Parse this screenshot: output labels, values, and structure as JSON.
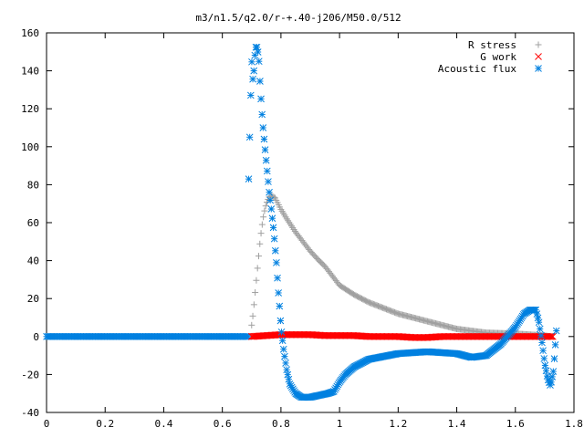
{
  "chart_data": {
    "type": "scatter",
    "title": "m3/n1.5/q2.0/r-+.40-j206/M50.0/512",
    "xlabel": "",
    "ylabel": "",
    "xlim": [
      0,
      1.8
    ],
    "ylim": [
      -40,
      160
    ],
    "x_ticks": [
      "0",
      "0.2",
      "0.4",
      "0.6",
      "0.8",
      "1",
      "1.2",
      "1.4",
      "1.6",
      "1.8"
    ],
    "y_ticks": [
      "-40",
      "-20",
      "0",
      "20",
      "40",
      "60",
      "80",
      "100",
      "120",
      "140",
      "160"
    ],
    "legend_position": "top-right",
    "grid": false,
    "series": [
      {
        "name": "R stress",
        "marker": "plus",
        "color": "#a0a0a0",
        "x": [
          0.7,
          0.705,
          0.71,
          0.715,
          0.72,
          0.725,
          0.73,
          0.735,
          0.74,
          0.745,
          0.75,
          0.755,
          0.76,
          0.765,
          0.77,
          0.775,
          0.78,
          0.79,
          0.8,
          0.82,
          0.85,
          0.88,
          0.9,
          0.93,
          0.95,
          0.97,
          1.0,
          1.05,
          1.1,
          1.15,
          1.2,
          1.3,
          1.4,
          1.5,
          1.6,
          1.65,
          1.7,
          1.72
        ],
        "y": [
          6,
          12,
          20,
          28,
          36,
          44,
          52,
          58,
          63,
          67,
          70,
          72,
          73.5,
          74,
          74,
          73.5,
          73,
          70,
          67,
          62,
          55,
          49,
          45,
          40,
          37,
          33,
          27,
          22,
          18,
          15,
          12,
          8,
          4,
          2,
          1.5,
          1,
          0.5,
          0
        ]
      },
      {
        "name": "G work",
        "marker": "cross",
        "color": "#ff0000",
        "x": [
          0.7,
          0.75,
          0.8,
          0.85,
          0.9,
          0.95,
          1.0,
          1.05,
          1.1,
          1.15,
          1.2,
          1.25,
          1.3,
          1.35,
          1.4,
          1.45,
          1.5,
          1.55,
          1.6,
          1.65,
          1.7,
          1.73
        ],
        "y": [
          0,
          0.5,
          1,
          1,
          1,
          0.5,
          0.5,
          0.5,
          0,
          0,
          0,
          -0.5,
          -0.5,
          0,
          0,
          0,
          0,
          0,
          0,
          0,
          0,
          0
        ]
      },
      {
        "name": "Acoustic flux",
        "marker": "star",
        "color": "#0080e0",
        "x": [
          0.69,
          0.7,
          0.705,
          0.71,
          0.715,
          0.72,
          0.725,
          0.73,
          0.735,
          0.74,
          0.745,
          0.75,
          0.755,
          0.76,
          0.765,
          0.77,
          0.775,
          0.78,
          0.785,
          0.79,
          0.795,
          0.8,
          0.81,
          0.82,
          0.83,
          0.85,
          0.87,
          0.9,
          0.93,
          0.96,
          0.98,
          1.0,
          1.02,
          1.05,
          1.1,
          1.2,
          1.3,
          1.4,
          1.45,
          1.5,
          1.55,
          1.6,
          1.63,
          1.65,
          1.67,
          1.68,
          1.69,
          1.7,
          1.71,
          1.72,
          1.73,
          1.74
        ],
        "y": [
          83,
          146,
          133,
          147,
          153,
          152,
          145,
          130,
          118,
          108,
          100,
          92,
          84,
          76,
          70,
          63,
          56,
          47,
          38,
          26,
          16,
          5,
          -8,
          -18,
          -25,
          -30,
          -32,
          -32,
          -31,
          -30,
          -29,
          -24,
          -20,
          -16,
          -12,
          -9,
          -8,
          -9,
          -11,
          -10,
          -4,
          5,
          12,
          14,
          14,
          8,
          -2,
          -14,
          -22,
          -26,
          -18,
          3
        ]
      }
    ]
  }
}
